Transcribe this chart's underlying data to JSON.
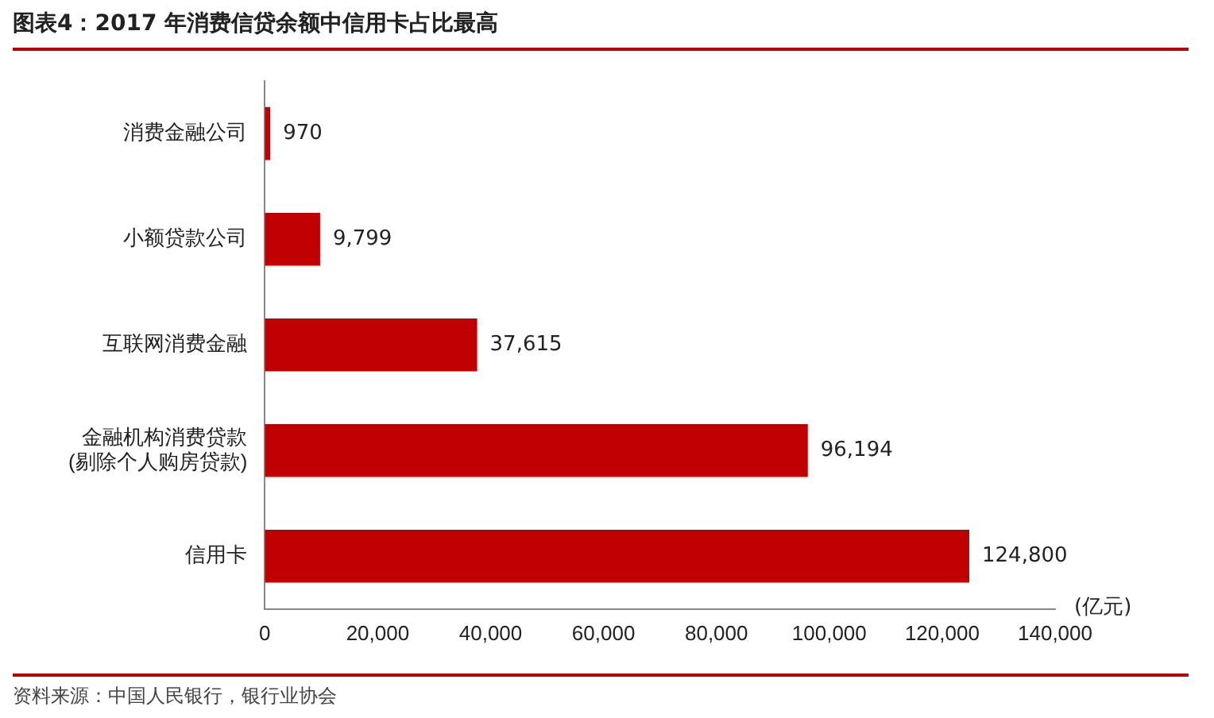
{
  "chart_data": {
    "type": "bar",
    "orientation": "horizontal",
    "title": "图表4：2017 年消费信贷余额中信用卡占比最高",
    "categories": [
      "消费金融公司",
      "小额贷款公司",
      "互联网消费金融",
      "金融机构消费贷款\n(剔除个人购房贷款)",
      "信用卡"
    ],
    "values": [
      970,
      9799,
      37615,
      96194,
      124800
    ],
    "color": "#c00000",
    "value_labels": [
      "970",
      "9,799",
      "37,615",
      "96,194",
      "124,800"
    ],
    "xlim": [
      0,
      140000
    ],
    "xticks": [
      0,
      {
        "value": 20000,
        "label": "20,000"
      },
      {
        "value": 40000,
        "label": "40,000"
      },
      {
        "value": 60000,
        "label": "60,000"
      },
      {
        "value": 80000,
        "label": "80,000"
      },
      {
        "value": 100000,
        "label": "100,000"
      },
      {
        "value": 120000,
        "label": "120,000"
      },
      {
        "value": 140000,
        "label": "140,000"
      }
    ],
    "xlabel": "(亿元)",
    "grid": false,
    "legend": false,
    "annotations": [
      "资料来源：中国人民银行，银行业协会"
    ]
  }
}
